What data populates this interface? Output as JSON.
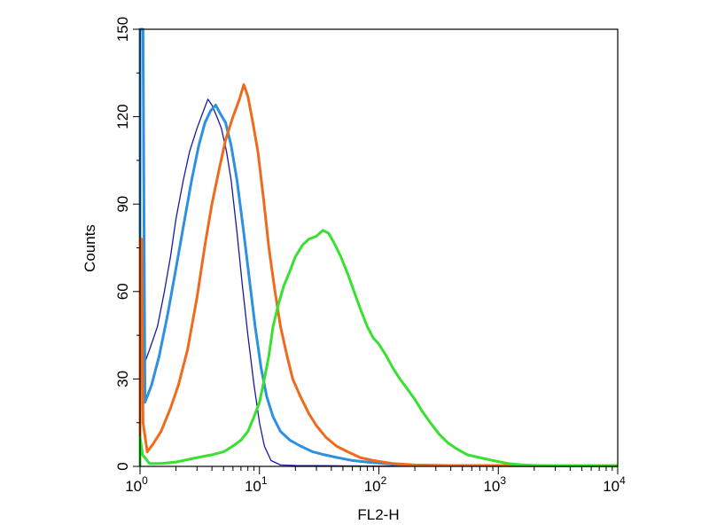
{
  "chart_data": {
    "type": "line",
    "xlabel": "FL2-H",
    "ylabel": "Counts",
    "x_scale": "log",
    "xlim": [
      1,
      10000
    ],
    "ylim": [
      0,
      150
    ],
    "grid": false,
    "legend": "none",
    "x_ticks": [
      {
        "base": "10",
        "exp": "0",
        "value": 1
      },
      {
        "base": "10",
        "exp": "1",
        "value": 10
      },
      {
        "base": "10",
        "exp": "2",
        "value": 100
      },
      {
        "base": "10",
        "exp": "3",
        "value": 1000
      },
      {
        "base": "10",
        "exp": "4",
        "value": 10000
      }
    ],
    "y_ticks": [
      "0",
      "30",
      "60",
      "90",
      "120",
      "150"
    ],
    "series": [
      {
        "color": "#1a1aa0",
        "width": 1.3,
        "points": [
          [
            1.0,
            0
          ],
          [
            1.0,
            150
          ],
          [
            1.05,
            150
          ],
          [
            1.08,
            35
          ],
          [
            1.2,
            40
          ],
          [
            1.4,
            48
          ],
          [
            1.6,
            60
          ],
          [
            1.8,
            72
          ],
          [
            2.0,
            85
          ],
          [
            2.3,
            98
          ],
          [
            2.6,
            108
          ],
          [
            3.0,
            116
          ],
          [
            3.4,
            122
          ],
          [
            3.7,
            126
          ],
          [
            4.0,
            124
          ],
          [
            4.4,
            120
          ],
          [
            4.8,
            116
          ],
          [
            5.3,
            108
          ],
          [
            5.8,
            98
          ],
          [
            6.5,
            80
          ],
          [
            7.2,
            62
          ],
          [
            8.0,
            45
          ],
          [
            9.0,
            28
          ],
          [
            10.0,
            15
          ],
          [
            11.0,
            7
          ],
          [
            12.5,
            2
          ],
          [
            15,
            0.5
          ],
          [
            20,
            0.3
          ],
          [
            40,
            0.2
          ],
          [
            100,
            0.1
          ],
          [
            10000,
            0.1
          ]
        ]
      },
      {
        "color": "#2e90e0",
        "width": 3,
        "points": [
          [
            1.0,
            0
          ],
          [
            1.0,
            150
          ],
          [
            1.06,
            150
          ],
          [
            1.1,
            22
          ],
          [
            1.25,
            28
          ],
          [
            1.45,
            38
          ],
          [
            1.7,
            52
          ],
          [
            2.0,
            68
          ],
          [
            2.3,
            82
          ],
          [
            2.7,
            98
          ],
          [
            3.1,
            110
          ],
          [
            3.5,
            118
          ],
          [
            3.9,
            122
          ],
          [
            4.3,
            124
          ],
          [
            4.7,
            121
          ],
          [
            5.2,
            118
          ],
          [
            5.8,
            110
          ],
          [
            6.5,
            98
          ],
          [
            7.3,
            82
          ],
          [
            8.2,
            65
          ],
          [
            9.2,
            48
          ],
          [
            10.3,
            34
          ],
          [
            11.5,
            24
          ],
          [
            13,
            17
          ],
          [
            15,
            12
          ],
          [
            18,
            9
          ],
          [
            22,
            7
          ],
          [
            28,
            5
          ],
          [
            35,
            4
          ],
          [
            45,
            3
          ],
          [
            60,
            2
          ],
          [
            80,
            1.5
          ],
          [
            110,
            1
          ],
          [
            160,
            0.5
          ],
          [
            300,
            0.3
          ],
          [
            10000,
            0.2
          ]
        ]
      },
      {
        "color": "#f06a1c",
        "width": 3,
        "points": [
          [
            1.0,
            0
          ],
          [
            1.0,
            78
          ],
          [
            1.03,
            78
          ],
          [
            1.06,
            15
          ],
          [
            1.15,
            5
          ],
          [
            1.3,
            8
          ],
          [
            1.5,
            12
          ],
          [
            1.8,
            20
          ],
          [
            2.1,
            28
          ],
          [
            2.5,
            40
          ],
          [
            3.0,
            58
          ],
          [
            3.5,
            76
          ],
          [
            4.0,
            90
          ],
          [
            4.6,
            102
          ],
          [
            5.2,
            112
          ],
          [
            6.0,
            120
          ],
          [
            6.8,
            126
          ],
          [
            7.4,
            131
          ],
          [
            8.0,
            127
          ],
          [
            8.8,
            118
          ],
          [
            9.7,
            108
          ],
          [
            10.8,
            92
          ],
          [
            12,
            75
          ],
          [
            13.5,
            60
          ],
          [
            15,
            48
          ],
          [
            17,
            38
          ],
          [
            19,
            30
          ],
          [
            22,
            24
          ],
          [
            26,
            18
          ],
          [
            30,
            14
          ],
          [
            36,
            10
          ],
          [
            44,
            7
          ],
          [
            55,
            5
          ],
          [
            70,
            3
          ],
          [
            90,
            2
          ],
          [
            130,
            1
          ],
          [
            200,
            0.5
          ],
          [
            400,
            0.3
          ],
          [
            10000,
            0.2
          ]
        ]
      },
      {
        "color": "#38e030",
        "width": 3,
        "points": [
          [
            1.0,
            0
          ],
          [
            1.0,
            10
          ],
          [
            1.05,
            4
          ],
          [
            1.2,
            1
          ],
          [
            1.5,
            1
          ],
          [
            2,
            1.5
          ],
          [
            3,
            3
          ],
          [
            4,
            4
          ],
          [
            5,
            5
          ],
          [
            6,
            7
          ],
          [
            7,
            9
          ],
          [
            8,
            12
          ],
          [
            9,
            17
          ],
          [
            10,
            22
          ],
          [
            11,
            30
          ],
          [
            12,
            38
          ],
          [
            13,
            48
          ],
          [
            14.5,
            56
          ],
          [
            16,
            62
          ],
          [
            18,
            67
          ],
          [
            20,
            72
          ],
          [
            23,
            76
          ],
          [
            26,
            78
          ],
          [
            30,
            79
          ],
          [
            34,
            81
          ],
          [
            38,
            80
          ],
          [
            43,
            76
          ],
          [
            48,
            72
          ],
          [
            55,
            66
          ],
          [
            62,
            60
          ],
          [
            70,
            54
          ],
          [
            80,
            48
          ],
          [
            90,
            44
          ],
          [
            100,
            42
          ],
          [
            115,
            38
          ],
          [
            130,
            34
          ],
          [
            150,
            30
          ],
          [
            170,
            27
          ],
          [
            200,
            23
          ],
          [
            230,
            19
          ],
          [
            270,
            15
          ],
          [
            320,
            11
          ],
          [
            380,
            8
          ],
          [
            450,
            6
          ],
          [
            550,
            4
          ],
          [
            700,
            3
          ],
          [
            900,
            2
          ],
          [
            1200,
            1
          ],
          [
            1600,
            0.5
          ],
          [
            2500,
            0.2
          ],
          [
            10000,
            0.1
          ]
        ]
      }
    ]
  }
}
